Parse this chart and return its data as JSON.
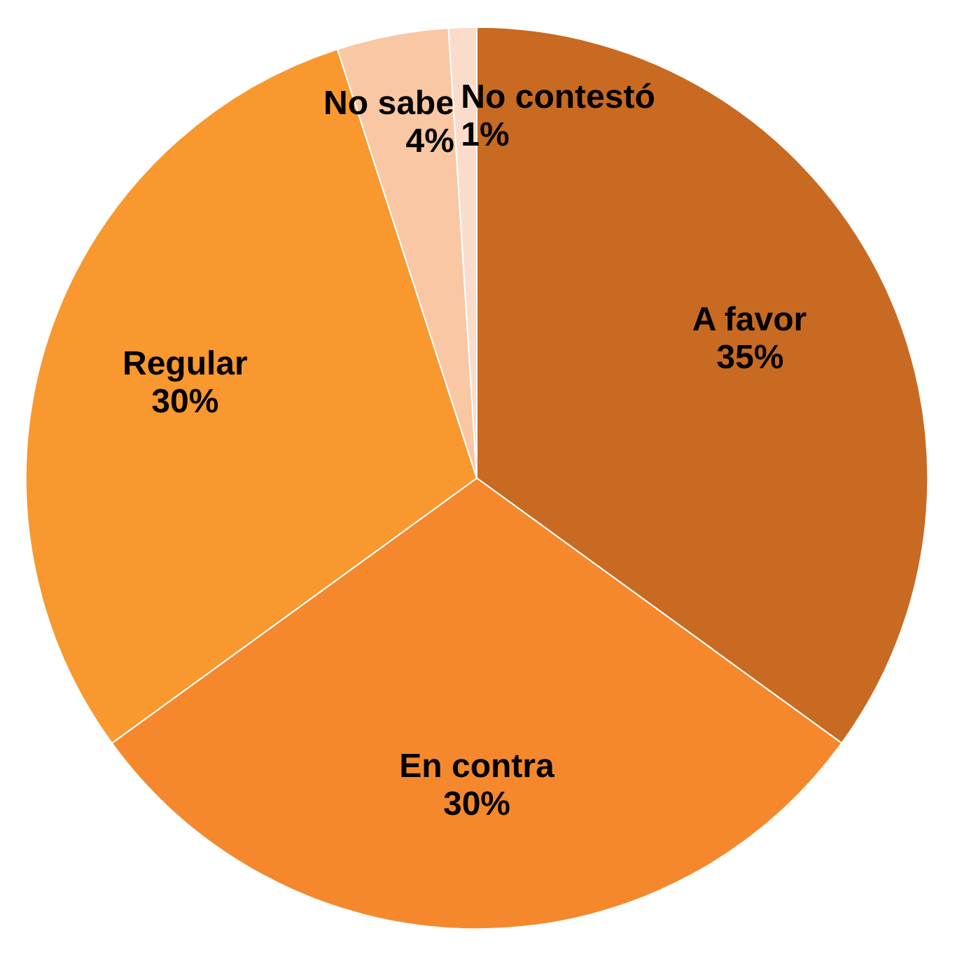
{
  "chart_data": {
    "type": "pie",
    "categories": [
      "A favor",
      "En contra",
      "Regular",
      "No sabe",
      "No contestó"
    ],
    "values": [
      35,
      30,
      30,
      4,
      1
    ],
    "value_labels": [
      "35%",
      "30%",
      "30%",
      "4%",
      "1%"
    ],
    "colors": [
      "#c96a22",
      "#f5882c",
      "#f8982f",
      "#f9c7a3",
      "#fbdccb"
    ]
  }
}
